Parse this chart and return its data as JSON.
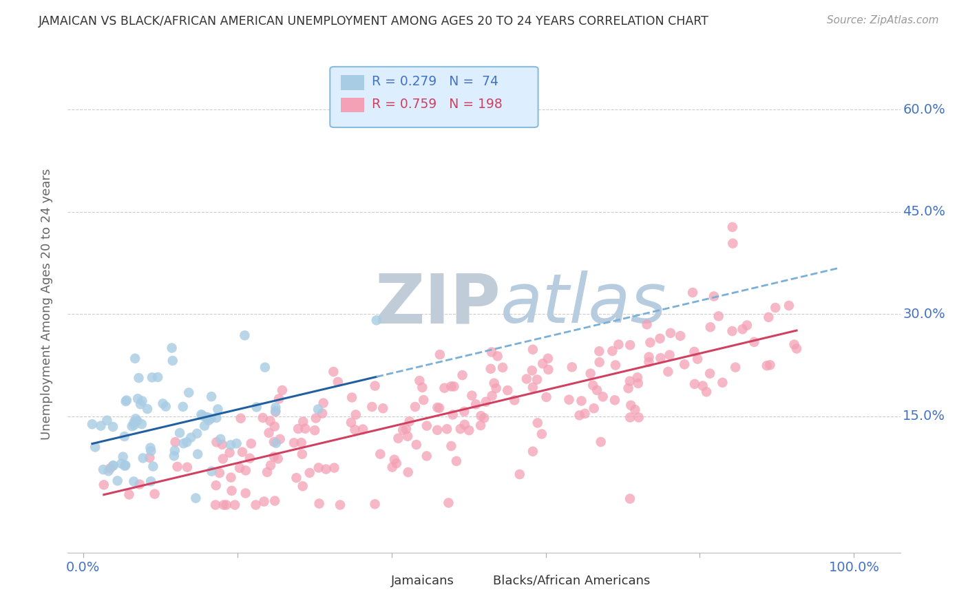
{
  "title": "JAMAICAN VS BLACK/AFRICAN AMERICAN UNEMPLOYMENT AMONG AGES 20 TO 24 YEARS CORRELATION CHART",
  "source": "Source: ZipAtlas.com",
  "ylabel": "Unemployment Among Ages 20 to 24 years",
  "x_ticks": [
    0.0,
    0.2,
    0.4,
    0.6,
    0.8,
    1.0
  ],
  "y_ticks": [
    0.0,
    0.15,
    0.3,
    0.45,
    0.6
  ],
  "y_tick_labels": [
    "",
    "15.0%",
    "30.0%",
    "45.0%",
    "60.0%"
  ],
  "xlim": [
    -0.02,
    1.06
  ],
  "ylim": [
    -0.05,
    0.68
  ],
  "legend_r1": "R = 0.279",
  "legend_n1": "N =  74",
  "legend_r2": "R = 0.759",
  "legend_n2": "N = 198",
  "color_blue_dot": "#a8cce4",
  "color_pink_dot": "#f4a0b5",
  "color_blue_line": "#2060a0",
  "color_pink_line": "#d04060",
  "color_blue_dash": "#7ab0d8",
  "color_title": "#333333",
  "color_source": "#999999",
  "color_axis_label": "#666666",
  "color_tick_label": "#4472c4",
  "color_grid": "#cccccc",
  "color_legend_bg": "#ddeeff",
  "color_legend_border": "#88bbdd",
  "watermark_zip": "#c8d8e8",
  "watermark_atlas": "#b8cce0",
  "seed_jamaican": 42,
  "seed_baa": 99,
  "n_jamaican": 74,
  "n_baa": 198,
  "r_jamaican": 0.279,
  "r_baa": 0.759
}
